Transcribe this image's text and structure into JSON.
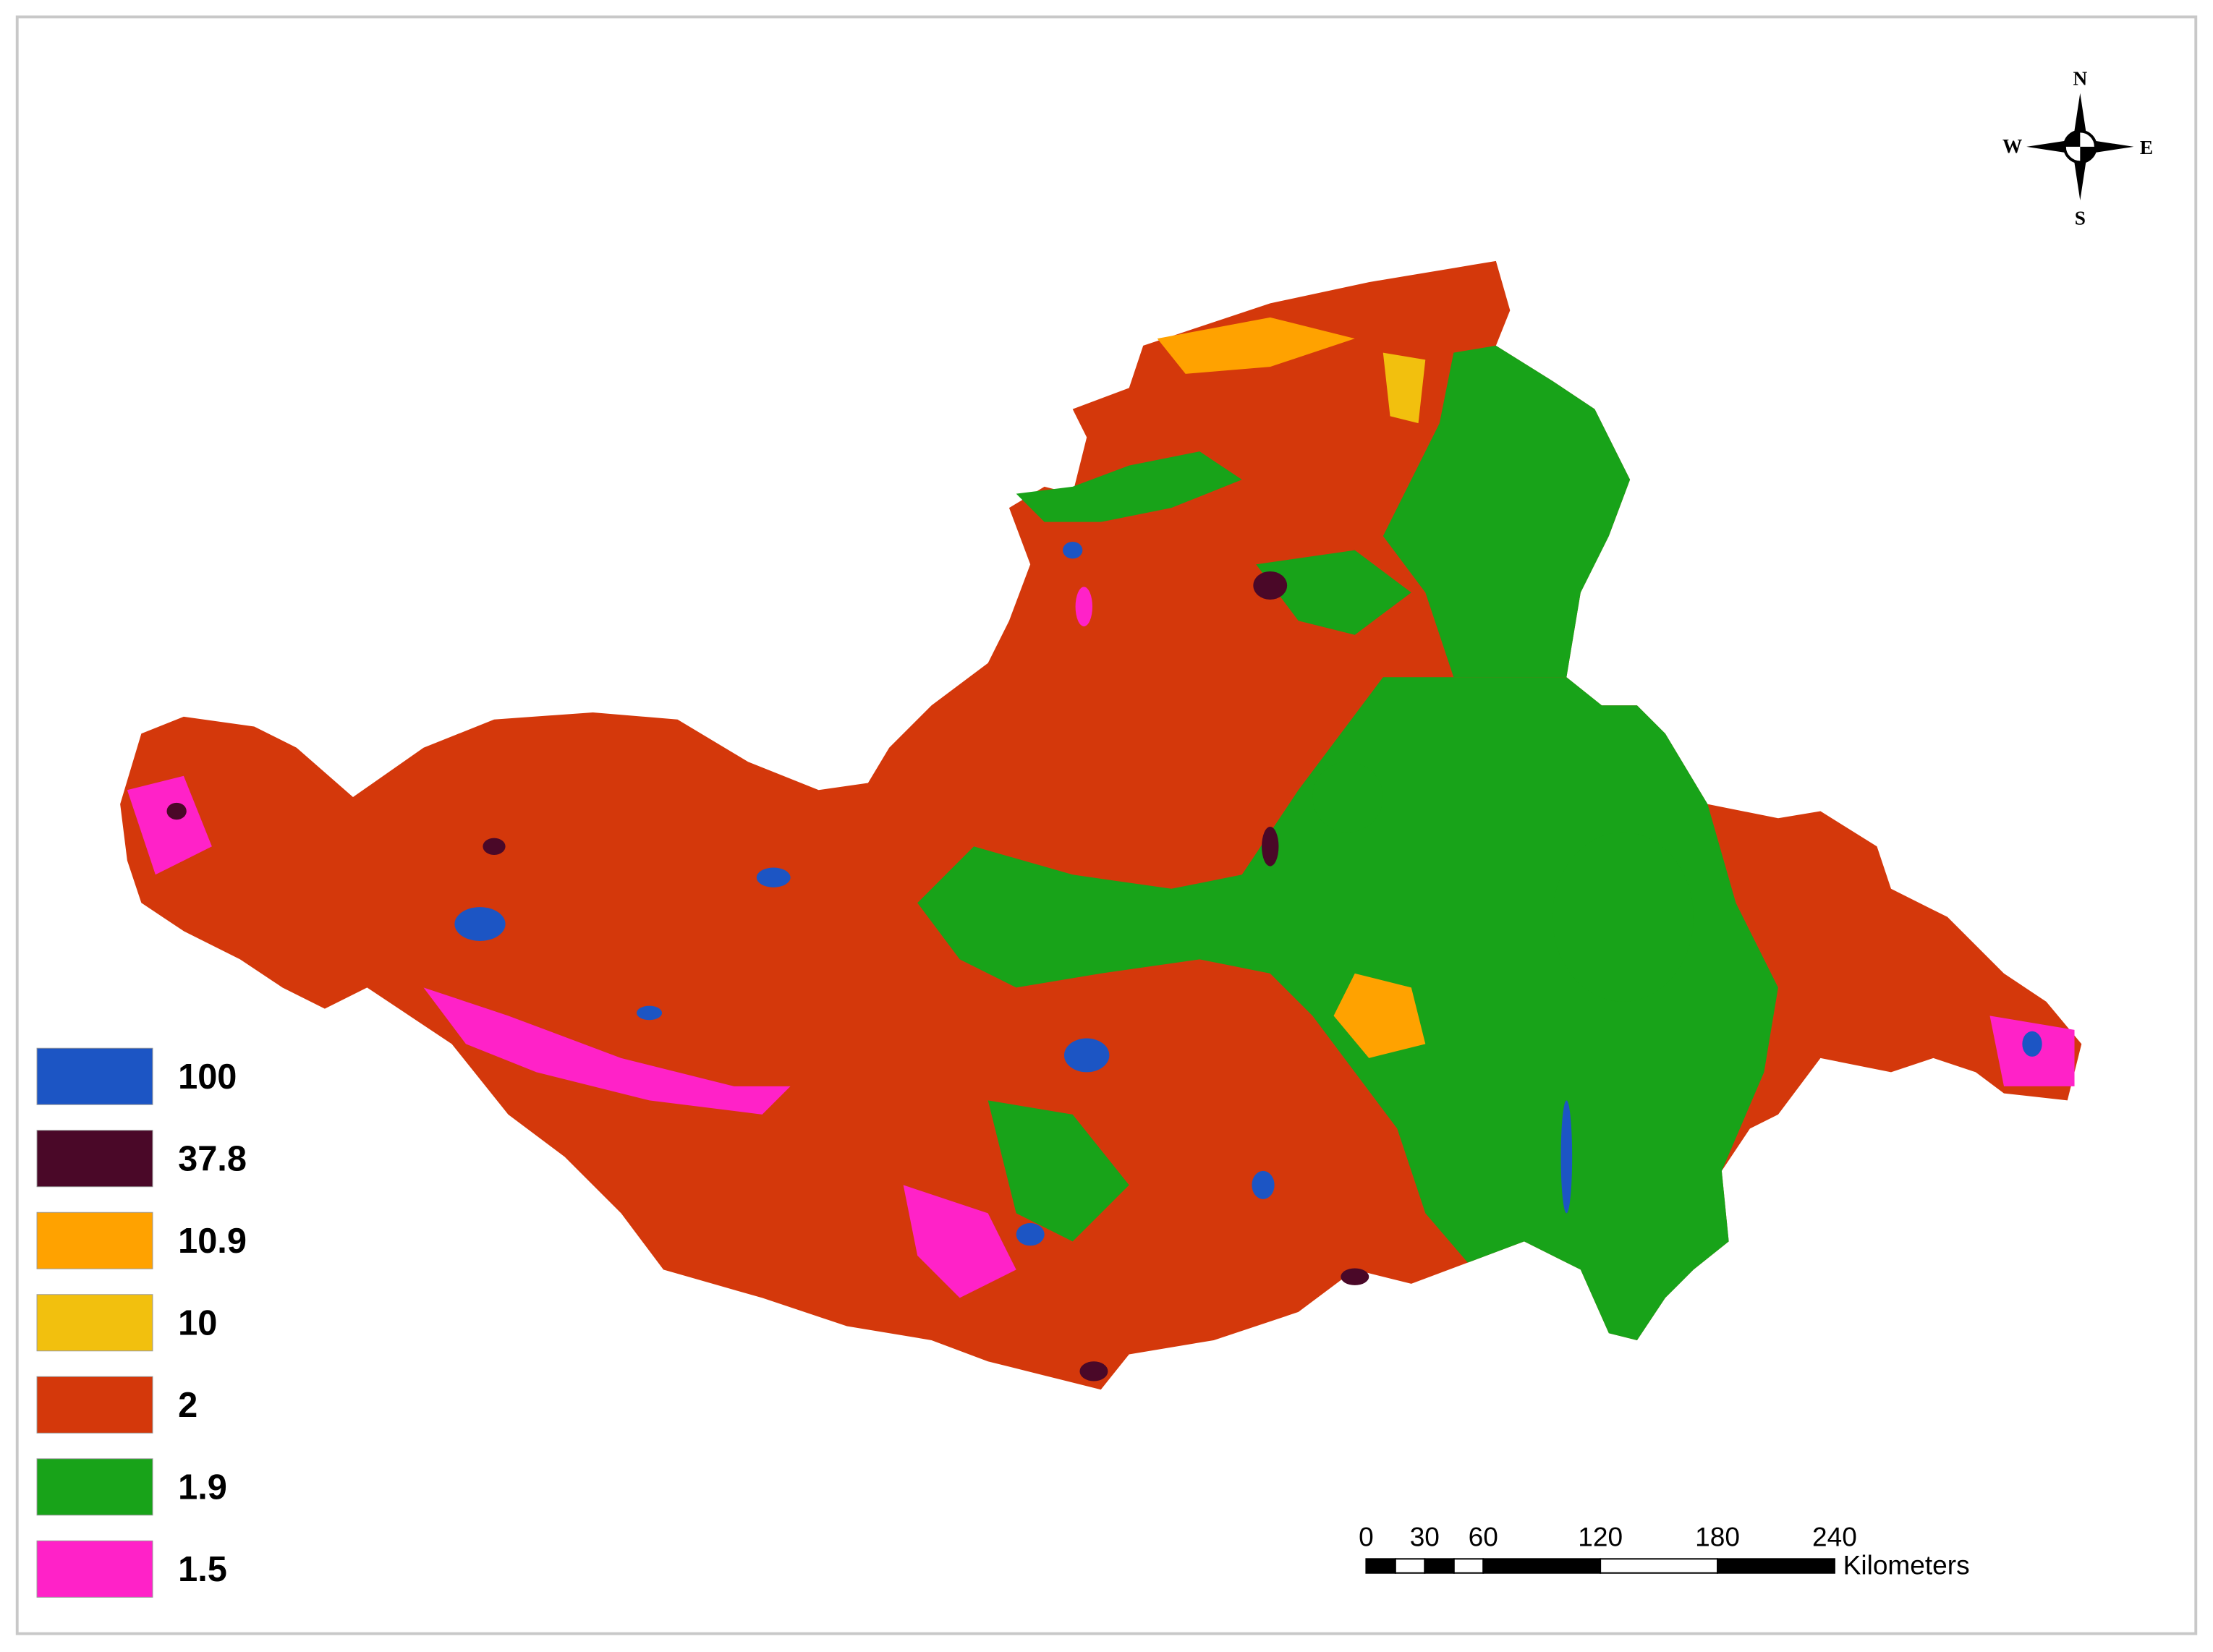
{
  "legend": {
    "items": [
      {
        "label": "100",
        "color": "#1c55c4"
      },
      {
        "label": "37.8",
        "color": "#4a0828"
      },
      {
        "label": "10.9",
        "color": "#ffa200"
      },
      {
        "label": "10",
        "color": "#f2c00e"
      },
      {
        "label": "2",
        "color": "#d4380b"
      },
      {
        "label": "1.9",
        "color": "#18a319"
      },
      {
        "label": "1.5",
        "color": "#ff22c8"
      }
    ]
  },
  "compass": {
    "north": "N",
    "south": "S",
    "west": "W",
    "east": "E"
  },
  "scale_bar": {
    "ticks": [
      0,
      30,
      60,
      120,
      180,
      240
    ],
    "unit": "Kilometers"
  }
}
